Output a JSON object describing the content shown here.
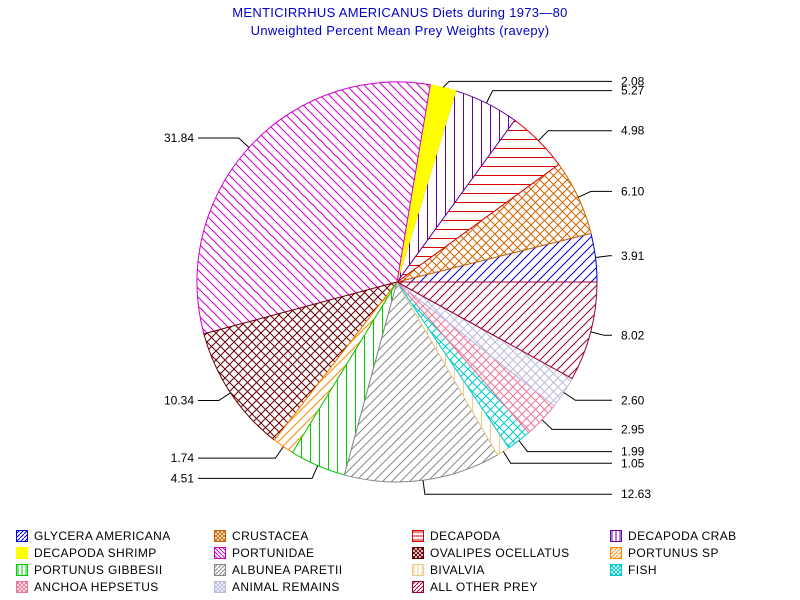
{
  "chart_data": {
    "type": "pie",
    "title": "MENTICIRRHUS AMERICANUS Diets during 1973—80",
    "subtitle": "Unweighted Percent Mean Prey Weights (ravepy)",
    "start_angle_deg": 0,
    "direction": "counterclockwise",
    "slices": [
      {
        "name": "GLYCERA AMERICANA",
        "label": "3.91",
        "value": 3.91,
        "color": "#0000cc",
        "pattern": "hatch-diag-up"
      },
      {
        "name": "CRUSTACEA",
        "label": "6.10",
        "value": 6.1,
        "color": "#cc6600",
        "pattern": "crosshatch"
      },
      {
        "name": "DECAPODA",
        "label": "4.98",
        "value": 4.98,
        "color": "#dd0000",
        "pattern": "hatch-horizontal"
      },
      {
        "name": "DECAPODA CRAB",
        "label": "5.27",
        "value": 5.27,
        "color": "#660099",
        "pattern": "hatch-vertical"
      },
      {
        "name": "DECAPODA SHRIMP",
        "label": "2.08",
        "value": 2.08,
        "color": "#ffff00",
        "pattern": "solid"
      },
      {
        "name": "PORTUNIDAE",
        "label": "31.84",
        "value": 31.84,
        "color": "#cc00cc",
        "pattern": "hatch-diag-down"
      },
      {
        "name": "OVALIPES OCELLATUS",
        "label": "10.34",
        "value": 10.34,
        "color": "#660000",
        "pattern": "crosshatch"
      },
      {
        "name": "PORTUNUS SP",
        "label": "1.74",
        "value": 1.74,
        "color": "#ff8800",
        "pattern": "hatch-diag-up"
      },
      {
        "name": "PORTUNUS GIBBESII",
        "label": "4.51",
        "value": 4.51,
        "color": "#00cc00",
        "pattern": "hatch-vertical"
      },
      {
        "name": "ALBUNEA PARETII",
        "label": "12.63",
        "value": 12.63,
        "color": "#888888",
        "pattern": "hatch-diag-up"
      },
      {
        "name": "BIVALVIA",
        "label": "1.05",
        "value": 1.05,
        "color": "#eecc88",
        "pattern": "hatch-vertical"
      },
      {
        "name": "FISH",
        "label": "1.99",
        "value": 1.99,
        "color": "#00cccc",
        "pattern": "crosshatch"
      },
      {
        "name": "ANCHOA HEPSETUS",
        "label": "2.95",
        "value": 2.95,
        "color": "#ee7799",
        "pattern": "crosshatch"
      },
      {
        "name": "ANIMAL REMAINS",
        "label": "2.60",
        "value": 2.6,
        "color": "#bbbbdd",
        "pattern": "crosshatch"
      },
      {
        "name": "ALL OTHER PREY",
        "label": "8.02",
        "value": 8.02,
        "color": "#990033",
        "pattern": "hatch-diag-up"
      }
    ],
    "legend_position": "bottom"
  }
}
